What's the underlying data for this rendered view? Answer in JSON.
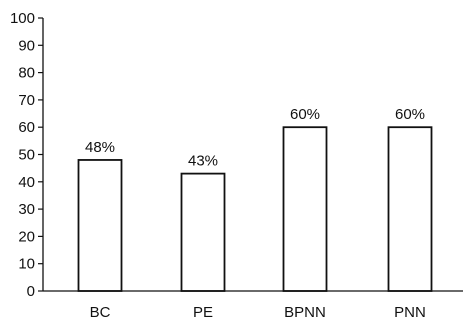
{
  "chart_data": {
    "type": "bar",
    "categories": [
      "BC",
      "PE",
      "BPNN",
      "PNN"
    ],
    "values": [
      48,
      43,
      60,
      60
    ],
    "data_labels": [
      "48%",
      "43%",
      "60%",
      "60%"
    ],
    "title": "",
    "xlabel": "",
    "ylabel": "",
    "ylim": [
      0,
      100
    ],
    "yticks": [
      0,
      10,
      20,
      30,
      40,
      50,
      60,
      70,
      80,
      90,
      100
    ],
    "grid": false,
    "legend": "none",
    "colors": {
      "bar_fill": "#ffffff",
      "bar_stroke": "#111111",
      "axis": "#111111"
    }
  }
}
